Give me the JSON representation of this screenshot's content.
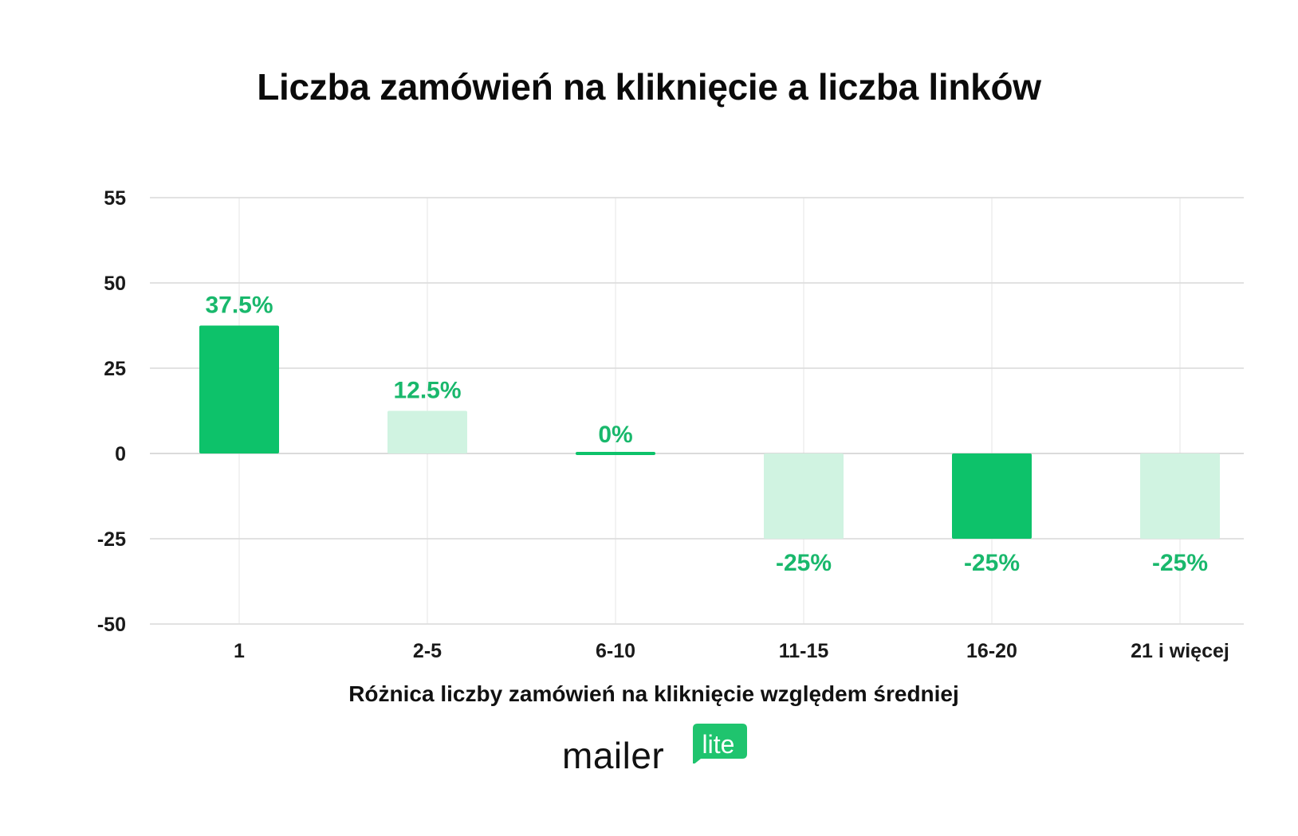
{
  "chart_data": {
    "type": "bar",
    "title": "Liczba zamówień na kliknięcie a liczba linków",
    "xlabel": "Różnica liczby zamówień na kliknięcie względem średniej",
    "ylabel": "",
    "categories": [
      "1",
      "2-5",
      "6-10",
      "11-15",
      "16-20",
      "21 i więcej"
    ],
    "values": [
      37.5,
      12.5,
      0,
      -25,
      -25,
      -25
    ],
    "data_labels": [
      "37.5%",
      "12.5%",
      "0%",
      "-25%",
      "-25%",
      "-25%"
    ],
    "bar_shades": [
      "dark",
      "light",
      "dark",
      "light",
      "dark",
      "light"
    ],
    "y_ticks": [
      55,
      50,
      25,
      0,
      -25,
      -50
    ],
    "ylim": [
      -50,
      55
    ],
    "grid": true,
    "legend": "none",
    "colors": {
      "dark_bar": "#0dc26a",
      "light_bar": "#d0f3e1",
      "label": "#19b86c",
      "grid": "#d9d9d9",
      "zero_line": "#cfcfcf"
    }
  },
  "logo": {
    "word": "mailer",
    "badge": "lite",
    "badge_color": "#1fc46e"
  }
}
